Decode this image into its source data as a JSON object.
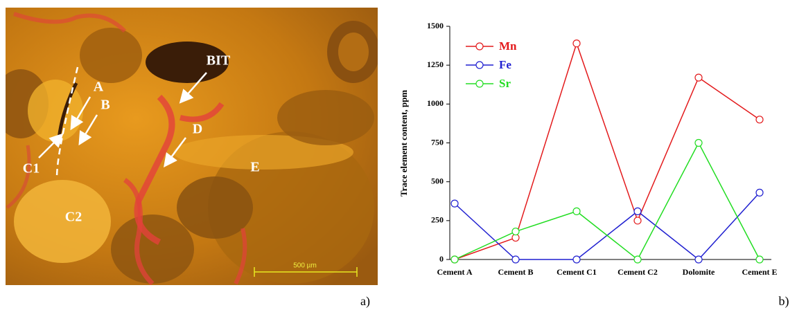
{
  "micrograph": {
    "labels": [
      "A",
      "B",
      "C1",
      "C2",
      "D",
      "E",
      "BIT"
    ],
    "scale_bar": "500 µm",
    "panel_label": "a)"
  },
  "chart_data": {
    "type": "line",
    "panel_label": "b)",
    "y_label": "Trace element content, ppm",
    "categories": [
      "Cement A",
      "Cement B",
      "Cement C1",
      "Cement C2",
      "Dolomite",
      "Cement E"
    ],
    "series": [
      {
        "name": "Mn",
        "color": "#e31a1c",
        "values": [
          0,
          140,
          1390,
          250,
          1170,
          900
        ]
      },
      {
        "name": "Fe",
        "color": "#1f1fd0",
        "values": [
          360,
          0,
          0,
          310,
          0,
          430
        ]
      },
      {
        "name": "Sr",
        "color": "#22dd22",
        "values": [
          0,
          180,
          310,
          0,
          750,
          0
        ]
      }
    ],
    "ylim": [
      0,
      1500
    ],
    "yticks": [
      0,
      250,
      500,
      750,
      1000,
      1250,
      1500
    ],
    "legend": "upper left"
  }
}
